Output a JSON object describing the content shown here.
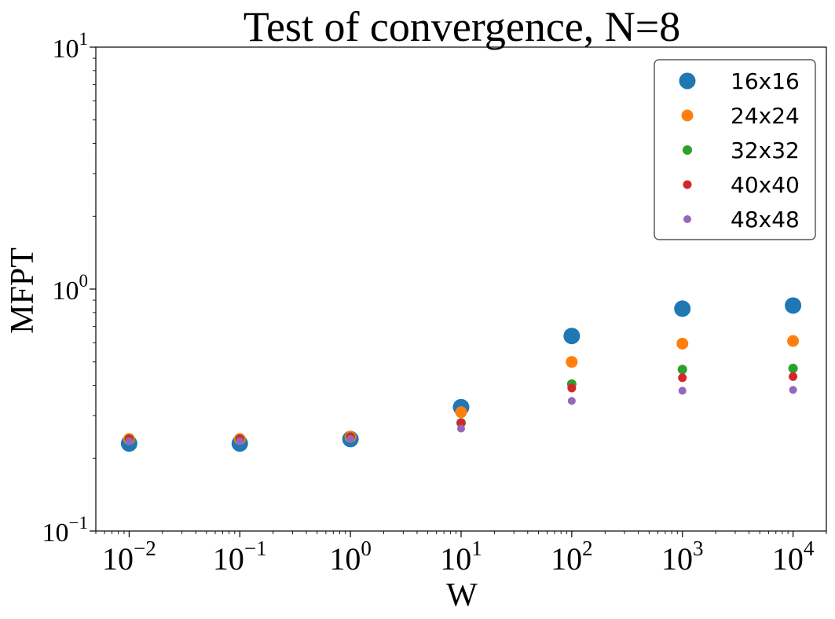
{
  "chart_data": {
    "type": "scatter",
    "title": "Test of convergence, N=8",
    "xlabel": "W",
    "ylabel": "MFPT",
    "xscale": "log",
    "yscale": "log",
    "xlim": [
      0.005,
      20000
    ],
    "ylim": [
      0.1,
      10
    ],
    "x_tick_labels": [
      {
        "value": 0.01,
        "base": "10",
        "exp": "−2"
      },
      {
        "value": 0.1,
        "base": "10",
        "exp": "−1"
      },
      {
        "value": 1,
        "base": "10",
        "exp": "0"
      },
      {
        "value": 10,
        "base": "10",
        "exp": "1"
      },
      {
        "value": 100,
        "base": "10",
        "exp": "2"
      },
      {
        "value": 1000,
        "base": "10",
        "exp": "3"
      },
      {
        "value": 10000,
        "base": "10",
        "exp": "4"
      }
    ],
    "y_tick_labels": [
      {
        "value": 0.1,
        "base": "10",
        "exp": "−1"
      },
      {
        "value": 1,
        "base": "10",
        "exp": "0"
      },
      {
        "value": 10,
        "base": "10",
        "exp": "1"
      }
    ],
    "grid": false,
    "legend_position": "top-right",
    "x": [
      0.01,
      0.1,
      1,
      10,
      100,
      1000,
      10000
    ],
    "series": [
      {
        "name": "16x16",
        "color": "#1f77b4",
        "values": [
          0.23,
          0.23,
          0.24,
          0.325,
          0.64,
          0.83,
          0.855
        ]
      },
      {
        "name": "24x24",
        "color": "#ff7f0e",
        "values": [
          0.24,
          0.24,
          0.245,
          0.31,
          0.5,
          0.595,
          0.61
        ]
      },
      {
        "name": "32x32",
        "color": "#2ca02c",
        "values": [
          0.24,
          0.24,
          0.245,
          0.28,
          0.405,
          0.465,
          0.47
        ]
      },
      {
        "name": "40x40",
        "color": "#d62728",
        "values": [
          0.24,
          0.24,
          0.245,
          0.28,
          0.39,
          0.43,
          0.435
        ]
      },
      {
        "name": "48x48",
        "color": "#9467bd",
        "values": [
          0.235,
          0.235,
          0.24,
          0.265,
          0.345,
          0.38,
          0.383
        ]
      }
    ]
  }
}
